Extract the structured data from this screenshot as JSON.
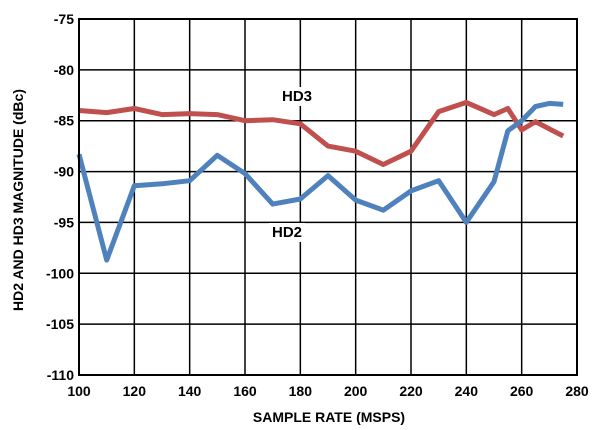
{
  "chart_data": {
    "type": "line",
    "xlabel": "SAMPLE RATE (MSPS)",
    "ylabel": "HD2 AND HD3 MAGNITUDE (dBc)",
    "xlim": [
      100,
      280
    ],
    "ylim": [
      -110,
      -75
    ],
    "xticks": [
      100,
      120,
      140,
      160,
      180,
      200,
      220,
      240,
      260,
      280
    ],
    "yticks": [
      -75,
      -80,
      -85,
      -90,
      -95,
      -100,
      -105,
      -110
    ],
    "xtick_labels": [
      "100",
      "120",
      "140",
      "160",
      "180",
      "200",
      "220",
      "240",
      "260",
      "280"
    ],
    "ytick_labels": [
      "-75",
      "-80",
      "-85",
      "-90",
      "-95",
      "-100",
      "-105",
      "-110"
    ],
    "grid": true,
    "series": [
      {
        "name": "HD3",
        "color": "#c0504d",
        "x": [
          100,
          110,
          120,
          130,
          140,
          150,
          160,
          170,
          180,
          190,
          200,
          210,
          220,
          230,
          240,
          250,
          255,
          260,
          265,
          270,
          275
        ],
        "y": [
          -84.0,
          -84.2,
          -83.8,
          -84.4,
          -84.3,
          -84.4,
          -85.0,
          -84.9,
          -85.3,
          -87.5,
          -88.0,
          -89.3,
          -88.0,
          -84.1,
          -83.2,
          -84.4,
          -83.8,
          -85.9,
          -85.1,
          -85.8,
          -86.5
        ]
      },
      {
        "name": "HD2",
        "color": "#4f81bd",
        "x": [
          100,
          110,
          120,
          130,
          140,
          150,
          160,
          170,
          180,
          190,
          200,
          210,
          220,
          230,
          240,
          250,
          255,
          260,
          265,
          270,
          275
        ],
        "y": [
          -88.3,
          -98.7,
          -91.4,
          -91.2,
          -90.9,
          -88.4,
          -90.2,
          -93.2,
          -92.7,
          -90.4,
          -92.8,
          -93.8,
          -91.9,
          -90.9,
          -95.0,
          -91.0,
          -86.0,
          -85.0,
          -83.6,
          -83.3,
          -83.4
        ]
      }
    ]
  }
}
